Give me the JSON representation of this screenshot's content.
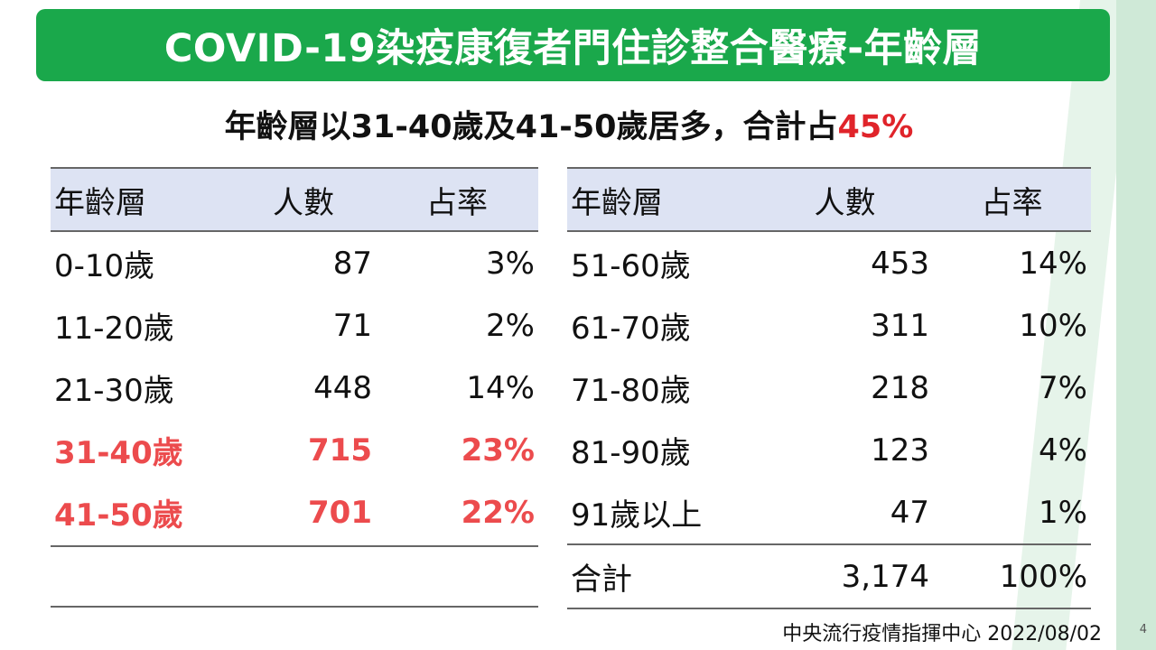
{
  "title": "COVID-19染疫康復者門住診整合醫療-年齡層",
  "subtitle": {
    "prefix": "年齡層以31-40歲及41-50歲居多，合計占",
    "highlight": "45%"
  },
  "colors": {
    "banner": "#1aa84b",
    "highlight_red": "#e0242a",
    "row_highlight_red": "#ec4b4d",
    "header_bg": "#dde3f3"
  },
  "headers": {
    "age": "年齡層",
    "count": "人數",
    "ratio": "占率"
  },
  "left_rows": [
    {
      "age": "0-10歲",
      "count": "87",
      "ratio": "3%",
      "highlight": false
    },
    {
      "age": "11-20歲",
      "count": "71",
      "ratio": "2%",
      "highlight": false
    },
    {
      "age": "21-30歲",
      "count": "448",
      "ratio": "14%",
      "highlight": false
    },
    {
      "age": "31-40歲",
      "count": "715",
      "ratio": "23%",
      "highlight": true
    },
    {
      "age": "41-50歲",
      "count": "701",
      "ratio": "22%",
      "highlight": true
    }
  ],
  "right_rows": [
    {
      "age": "51-60歲",
      "count": "453",
      "ratio": "14%"
    },
    {
      "age": "61-70歲",
      "count": "311",
      "ratio": "10%"
    },
    {
      "age": "71-80歲",
      "count": "218",
      "ratio": "7%"
    },
    {
      "age": "81-90歲",
      "count": "123",
      "ratio": "4%"
    },
    {
      "age": "91歲以上",
      "count": "47",
      "ratio": "1%"
    }
  ],
  "total": {
    "label": "合計",
    "count": "3,174",
    "ratio": "100%"
  },
  "footer": {
    "source": "中央流行疫情指揮中心 2022/08/02",
    "page": "4"
  }
}
